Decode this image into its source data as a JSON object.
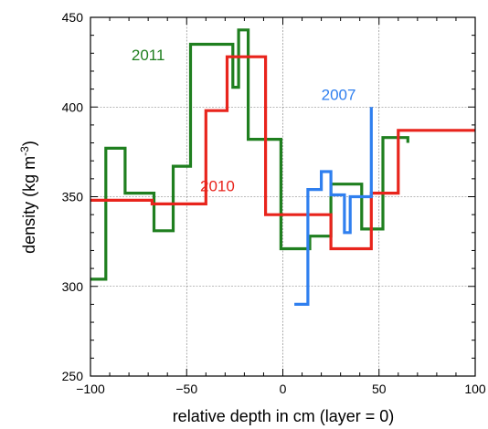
{
  "chart_data": {
    "type": "line",
    "step": true,
    "xlabel": "relative depth in cm (layer = 0)",
    "ylabel": {
      "text": "density (kg m",
      "sup": "-3",
      "close": ")"
    },
    "xlim": [
      -100,
      100
    ],
    "ylim": [
      250,
      450
    ],
    "xticks": [
      -100,
      -50,
      0,
      50,
      100
    ],
    "yticks": [
      250,
      300,
      350,
      400,
      450
    ],
    "x_minor_step": 10,
    "y_minor_step": 10,
    "grid": true,
    "series": [
      {
        "name": "2011",
        "color": "#1f7f1f",
        "label_at": [
          -70,
          426
        ],
        "points": [
          [
            -100,
            304
          ],
          [
            -92,
            304
          ],
          [
            -92,
            377
          ],
          [
            -82,
            377
          ],
          [
            -82,
            352
          ],
          [
            -67,
            352
          ],
          [
            -67,
            331
          ],
          [
            -57,
            331
          ],
          [
            -57,
            367
          ],
          [
            -48,
            367
          ],
          [
            -48,
            435
          ],
          [
            -26,
            435
          ],
          [
            -26,
            411
          ],
          [
            -23,
            411
          ],
          [
            -23,
            443
          ],
          [
            -18,
            443
          ],
          [
            -18,
            382
          ],
          [
            -1,
            382
          ],
          [
            -1,
            321
          ],
          [
            14,
            321
          ],
          [
            14,
            328
          ],
          [
            25,
            328
          ],
          [
            25,
            357
          ],
          [
            41,
            357
          ],
          [
            41,
            332
          ],
          [
            52,
            332
          ],
          [
            52,
            383
          ],
          [
            65,
            383
          ],
          [
            65,
            380
          ]
        ]
      },
      {
        "name": "2010",
        "color": "#e8241c",
        "label_at": [
          -34,
          353
        ],
        "points": [
          [
            -100,
            348
          ],
          [
            -68,
            348
          ],
          [
            -68,
            346
          ],
          [
            -40,
            346
          ],
          [
            -40,
            398
          ],
          [
            -29,
            398
          ],
          [
            -29,
            428
          ],
          [
            -9,
            428
          ],
          [
            -9,
            340
          ],
          [
            25,
            340
          ],
          [
            25,
            321
          ],
          [
            46,
            321
          ],
          [
            46,
            352
          ],
          [
            60,
            352
          ],
          [
            60,
            387
          ],
          [
            100,
            387
          ]
        ]
      },
      {
        "name": "2007",
        "color": "#2f7fef",
        "label_at": [
          29,
          404
        ],
        "points": [
          [
            6,
            290
          ],
          [
            13,
            290
          ],
          [
            13,
            354
          ],
          [
            20,
            354
          ],
          [
            20,
            364
          ],
          [
            25,
            364
          ],
          [
            25,
            351
          ],
          [
            32,
            351
          ],
          [
            32,
            330
          ],
          [
            35,
            330
          ],
          [
            35,
            350
          ],
          [
            46,
            350
          ],
          [
            46,
            400
          ]
        ]
      }
    ]
  }
}
